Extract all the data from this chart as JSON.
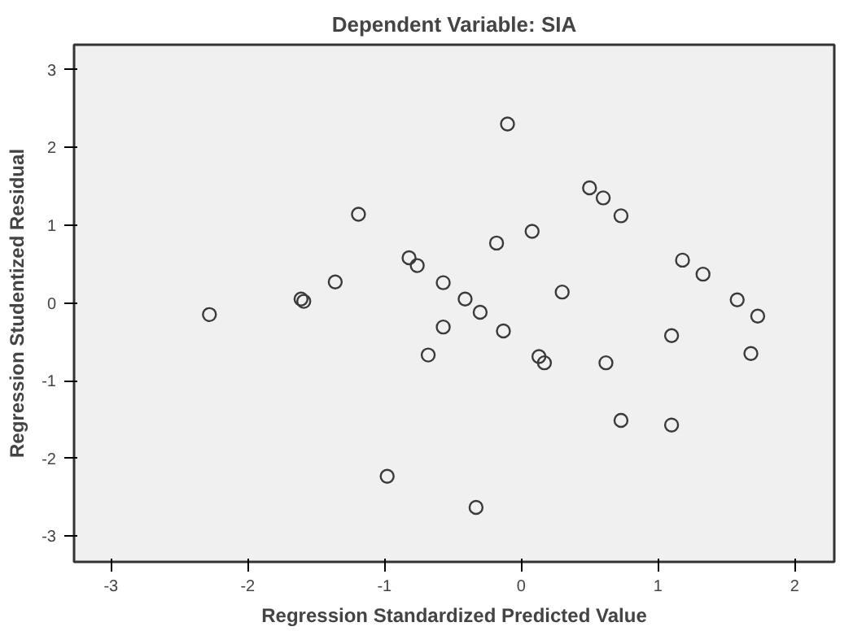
{
  "chart_data": {
    "type": "scatter",
    "title": "Dependent Variable: SIA",
    "xlabel": "Regression Standardized Predicted Value",
    "ylabel": "Regression Studentized Residual",
    "xlim": [
      -3.27,
      2.29
    ],
    "ylim": [
      -3.33,
      3.32
    ],
    "xticks": [
      -3,
      -2,
      -1,
      0,
      1,
      2
    ],
    "yticks": [
      -3,
      -2,
      -1,
      0,
      1,
      2,
      3
    ],
    "grid": false,
    "marker": "circle",
    "series": [
      {
        "color": "#3a3a3a",
        "x": [
          -0.1,
          0.5,
          0.6,
          0.73,
          -1.19,
          0.08,
          -0.18,
          -0.82,
          -0.76,
          1.18,
          1.33,
          -1.36,
          -0.57,
          0.3,
          -1.61,
          -1.59,
          -0.41,
          1.58,
          -2.28,
          -0.3,
          1.73,
          -0.57,
          -0.13,
          1.1,
          -0.68,
          0.13,
          0.17,
          0.62,
          1.68,
          0.73,
          1.1,
          -0.98,
          -0.33
        ],
        "values": [
          2.3,
          1.48,
          1.35,
          1.12,
          1.14,
          0.92,
          0.77,
          0.58,
          0.48,
          0.55,
          0.37,
          0.27,
          0.26,
          0.14,
          0.05,
          0.02,
          0.05,
          0.04,
          -0.15,
          -0.12,
          -0.17,
          -0.31,
          -0.36,
          -0.42,
          -0.67,
          -0.69,
          -0.77,
          -0.77,
          -0.65,
          -1.51,
          -1.57,
          -2.23,
          -2.63
        ]
      }
    ]
  }
}
